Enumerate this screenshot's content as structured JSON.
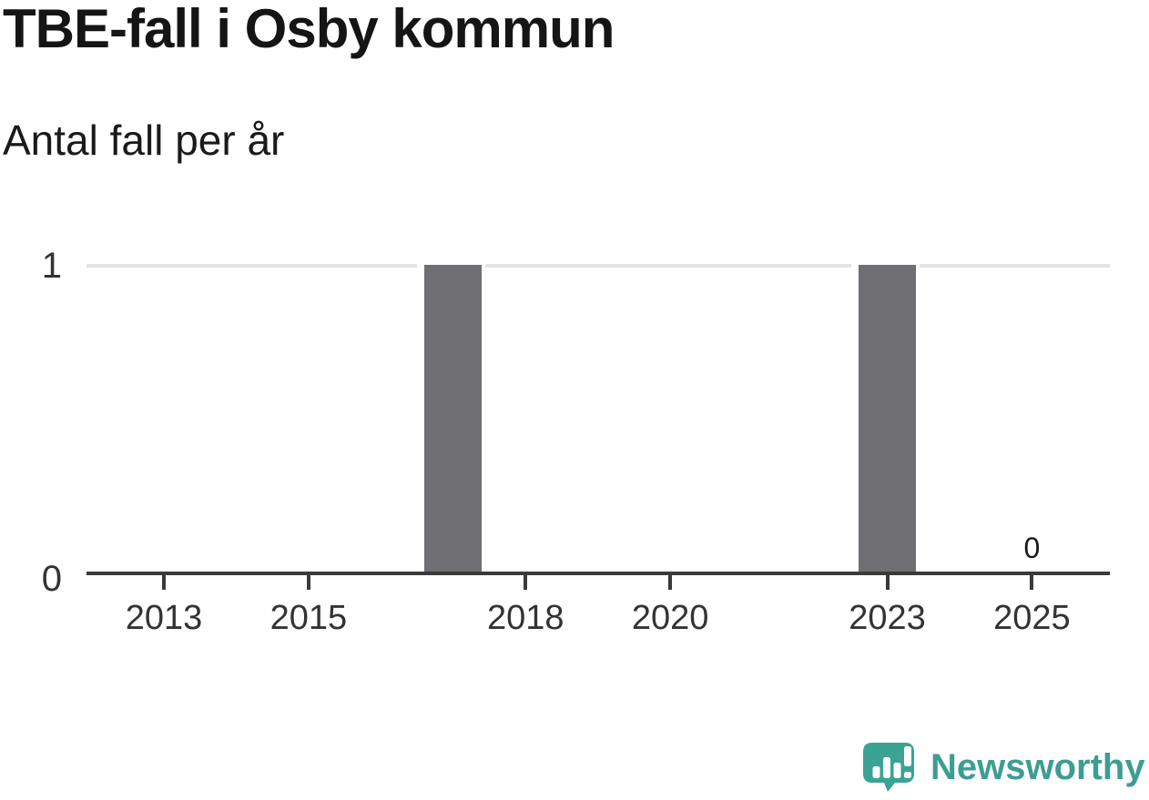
{
  "header": {
    "title": "TBE-fall i Osby kommun",
    "subtitle": "Antal fall per år"
  },
  "chart_data": {
    "type": "bar",
    "title": "TBE-fall i Osby kommun",
    "subtitle": "Antal fall per år",
    "categories": [
      2012,
      2013,
      2014,
      2015,
      2016,
      2017,
      2018,
      2019,
      2020,
      2021,
      2022,
      2023,
      2024,
      2025
    ],
    "values": [
      0,
      0,
      0,
      0,
      0,
      1,
      0,
      0,
      0,
      0,
      0,
      1,
      0,
      0
    ],
    "x_tick_labels": [
      "2013",
      "2015",
      "2018",
      "2020",
      "2023",
      "2025"
    ],
    "y_ticks": [
      {
        "label": "0",
        "value": 0
      },
      {
        "label": "1",
        "value": 1
      }
    ],
    "ylim": [
      0,
      1
    ],
    "grid": "horizontal gridline at y=1 only",
    "legend": "none",
    "annotations": [
      {
        "x": 2025,
        "text": "0"
      }
    ],
    "bar_color": "#6e6e73",
    "axis_color": "#3a3a3a",
    "grid_color": "#e3e3e3",
    "tick_label_color": "#333333"
  },
  "branding": {
    "name": "Newsworthy",
    "color": "#3d9d93",
    "icon": "newsworthy-speech-bubble-bars-icon"
  }
}
